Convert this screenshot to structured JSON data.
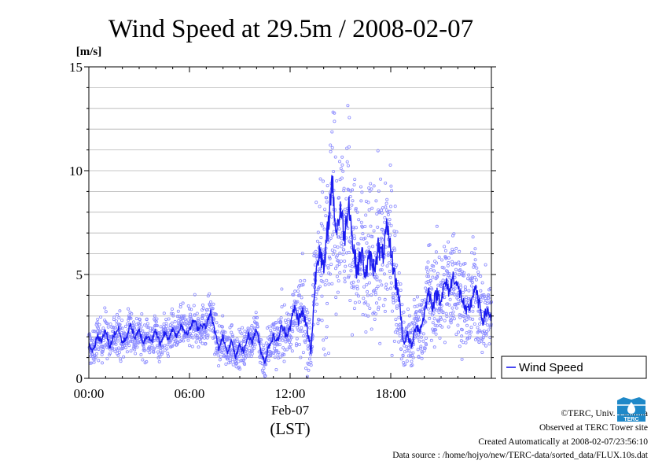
{
  "chart_data": {
    "type": "scatter",
    "title": "Wind Speed at 29.5m / 2008-02-07",
    "ylabel": "[m/s]",
    "xlabel": "(LST)",
    "date_label": "Feb-07",
    "xlim": [
      "00:00",
      "24:00"
    ],
    "ylim": [
      0,
      15
    ],
    "y_ticks": [
      "0",
      "5",
      "10",
      "15"
    ],
    "x_ticks": [
      "00:00",
      "06:00",
      "12:00",
      "18:00"
    ],
    "grid": true,
    "legend_position": "right",
    "legend_label": "Wind Speed",
    "colors": {
      "line": "#1a1aee",
      "points": "#8a8aff"
    },
    "series": [
      {
        "name": "Wind Speed",
        "x_hours": [
          0.0,
          0.25,
          0.5,
          0.75,
          1.0,
          1.25,
          1.5,
          1.75,
          2.0,
          2.25,
          2.5,
          2.75,
          3.0,
          3.25,
          3.5,
          3.75,
          4.0,
          4.25,
          4.5,
          4.75,
          5.0,
          5.25,
          5.5,
          5.75,
          6.0,
          6.25,
          6.5,
          6.75,
          7.0,
          7.25,
          7.5,
          7.75,
          8.0,
          8.25,
          8.5,
          8.75,
          9.0,
          9.25,
          9.5,
          9.75,
          10.0,
          10.25,
          10.5,
          10.75,
          11.0,
          11.25,
          11.5,
          11.75,
          12.0,
          12.25,
          12.5,
          12.75,
          13.0,
          13.25,
          13.5,
          13.75,
          14.0,
          14.25,
          14.5,
          14.75,
          15.0,
          15.25,
          15.5,
          15.75,
          16.0,
          16.25,
          16.5,
          16.75,
          17.0,
          17.25,
          17.5,
          17.75,
          18.0,
          18.25,
          18.5,
          18.75,
          19.0,
          19.25,
          19.5,
          19.75,
          20.0,
          20.25,
          20.5,
          20.75,
          21.0,
          21.25,
          21.5,
          21.75,
          22.0,
          22.25,
          22.5,
          22.75,
          23.0,
          23.25,
          23.5,
          23.75,
          24.0
        ],
        "mean": [
          1.6,
          1.3,
          2.0,
          1.8,
          2.3,
          1.5,
          2.1,
          2.4,
          1.7,
          2.0,
          2.6,
          1.9,
          2.3,
          1.7,
          2.1,
          1.8,
          2.3,
          1.6,
          2.2,
          1.9,
          2.4,
          2.0,
          2.6,
          2.2,
          2.3,
          2.8,
          2.4,
          2.6,
          2.5,
          3.2,
          2.3,
          1.4,
          2.0,
          1.3,
          1.8,
          1.0,
          1.6,
          1.3,
          2.1,
          1.8,
          2.4,
          1.3,
          0.8,
          1.6,
          2.0,
          1.8,
          2.5,
          2.1,
          2.5,
          3.4,
          2.8,
          3.2,
          2.4,
          1.3,
          4.8,
          6.5,
          5.0,
          7.2,
          9.6,
          7.0,
          8.2,
          6.8,
          8.7,
          6.3,
          5.2,
          6.1,
          5.0,
          5.8,
          5.3,
          6.3,
          5.8,
          7.1,
          6.2,
          4.8,
          3.9,
          1.7,
          2.1,
          1.5,
          2.6,
          2.3,
          3.1,
          4.2,
          3.5,
          4.1,
          3.8,
          4.6,
          4.2,
          5.0,
          4.3,
          3.9,
          3.1,
          3.5,
          4.4,
          3.6,
          2.8,
          3.3,
          2.9
        ],
        "spread": [
          0.7,
          0.6,
          0.7,
          0.7,
          0.8,
          0.6,
          0.7,
          0.8,
          0.7,
          0.7,
          0.8,
          0.7,
          0.7,
          0.6,
          0.7,
          0.6,
          0.7,
          0.6,
          0.7,
          0.6,
          0.7,
          0.6,
          0.7,
          0.7,
          0.7,
          0.8,
          0.7,
          0.7,
          0.7,
          0.8,
          0.7,
          0.6,
          0.7,
          0.6,
          0.7,
          0.5,
          0.7,
          0.6,
          0.7,
          0.7,
          0.8,
          0.6,
          0.6,
          0.7,
          0.8,
          0.8,
          1.0,
          1.0,
          1.1,
          1.2,
          1.3,
          1.4,
          1.4,
          1.2,
          2.2,
          2.8,
          2.8,
          3.0,
          3.3,
          3.0,
          3.0,
          2.8,
          3.0,
          2.8,
          2.5,
          2.6,
          2.5,
          2.6,
          2.5,
          2.7,
          2.6,
          2.9,
          2.6,
          2.2,
          1.6,
          0.9,
          1.0,
          0.9,
          1.2,
          1.2,
          1.4,
          1.7,
          1.6,
          1.7,
          1.6,
          1.8,
          1.7,
          1.8,
          1.7,
          1.6,
          1.4,
          1.5,
          1.7,
          1.6,
          1.3,
          1.4,
          1.3
        ]
      }
    ]
  },
  "credits": {
    "copyright": "©TERC, Univ. Tsukuba",
    "observed": "Observed at TERC Tower site",
    "created": "Created Automatically at 2008-02-07/23:56:10",
    "source": "Data source : /home/hojyo/new/TERC-data/sorted_data/FLUX.10s.dat"
  },
  "logo_text": "TERC"
}
